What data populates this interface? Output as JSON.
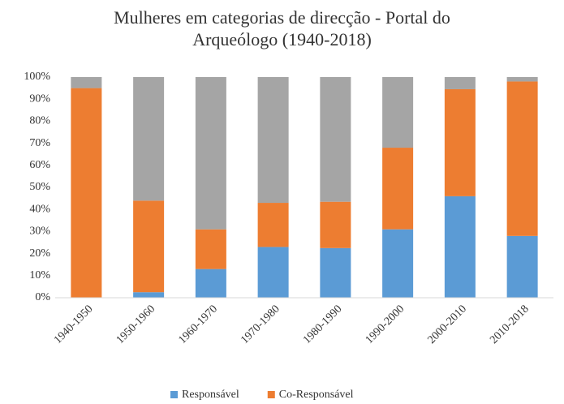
{
  "chart_data": {
    "type": "stacked_bar",
    "title": "Mulheres em categorias de direcção - Portal do Arqueólogo (1940-2018)",
    "categories": [
      "1940-1950",
      "1950-1960",
      "1960-1970",
      "1970-1980",
      "1980-1990",
      "1990-2000",
      "2000-2010",
      "2010-2018"
    ],
    "series": [
      {
        "name": "Responsável",
        "color": "#5b9bd5",
        "values": [
          0,
          2.5,
          13,
          23,
          22.5,
          31,
          46,
          28
        ]
      },
      {
        "name": "Co-Responsável",
        "color": "#ed7d31",
        "values": [
          95,
          41.5,
          18,
          20,
          21,
          37,
          48.5,
          70
        ]
      },
      {
        "color": "#a5a5a5",
        "values": [
          5,
          56,
          69,
          57,
          56.5,
          32,
          5.5,
          2
        ]
      }
    ],
    "ylim": [
      0,
      100
    ],
    "yticks": [
      {
        "value": 0,
        "label": "0%"
      },
      {
        "value": 10,
        "label": "10%"
      },
      {
        "value": 20,
        "label": "20%"
      },
      {
        "value": 30,
        "label": "30%"
      },
      {
        "value": 40,
        "label": "40%"
      },
      {
        "value": 50,
        "label": "50%"
      },
      {
        "value": 60,
        "label": "60%"
      },
      {
        "value": 70,
        "label": "70%"
      },
      {
        "value": 80,
        "label": "80%"
      },
      {
        "value": 90,
        "label": "90%"
      },
      {
        "value": 100,
        "label": "100%"
      }
    ],
    "grid": false,
    "legend": "bottom"
  }
}
